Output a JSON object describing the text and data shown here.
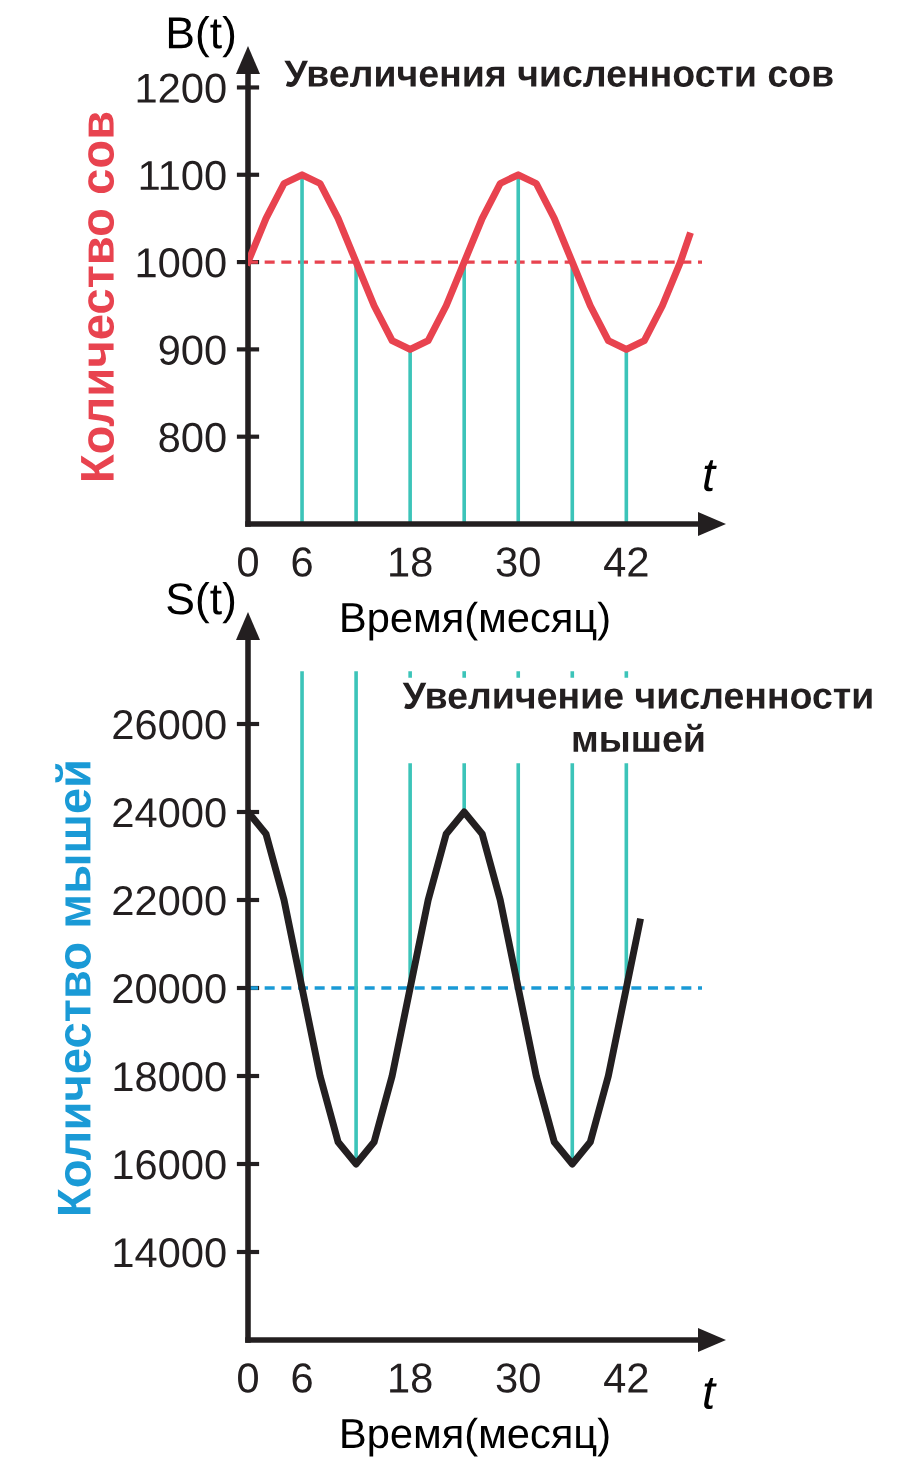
{
  "chart_data": [
    {
      "type": "line",
      "title": "Увеличения численности сов",
      "xlabel": "Время(месяц)",
      "ylabel": "Количество сов",
      "annotations": [
        "B(t)",
        "t"
      ],
      "x": [
        0,
        2,
        4,
        6,
        8,
        10,
        12,
        14,
        16,
        18,
        20,
        22,
        24,
        26,
        28,
        30,
        32,
        34,
        36,
        38,
        40,
        42,
        44,
        46,
        48,
        49
      ],
      "series": [
        {
          "color": "#e8434f",
          "values": [
            1000,
            1050,
            1090,
            1100,
            1090,
            1050,
            1000,
            950,
            910,
            900,
            910,
            950,
            1000,
            1050,
            1090,
            1100,
            1090,
            1050,
            1000,
            950,
            910,
            900,
            910,
            950,
            1000,
            1030
          ]
        }
      ],
      "xlim": [
        0,
        50.4
      ],
      "ylim": [
        700,
        1220
      ],
      "xticks": [
        0,
        6,
        18,
        30,
        42
      ],
      "yticks": [
        800,
        900,
        1000,
        1100,
        1200
      ],
      "grid": false,
      "marker": "none",
      "line_style": "solid",
      "ref_lines": [
        {
          "axis": "y",
          "value": 1000,
          "color": "#e8434f",
          "line_style": "dashed"
        },
        {
          "axis": "x",
          "value": 6,
          "color": "#3cc4b9"
        },
        {
          "axis": "x",
          "value": 12,
          "color": "#3cc4b9"
        },
        {
          "axis": "x",
          "value": 18,
          "color": "#3cc4b9"
        },
        {
          "axis": "x",
          "value": 24,
          "color": "#3cc4b9"
        },
        {
          "axis": "x",
          "value": 30,
          "color": "#3cc4b9"
        },
        {
          "axis": "x",
          "value": 36,
          "color": "#3cc4b9"
        },
        {
          "axis": "x",
          "value": 42,
          "color": "#3cc4b9"
        }
      ]
    },
    {
      "type": "line",
      "title": "Увеличение численности мышей",
      "xlabel": "Время(месяц)",
      "ylabel": "Количество мышей",
      "annotations": [
        "S(t)",
        "t"
      ],
      "x": [
        0,
        2,
        4,
        6,
        8,
        10,
        12,
        14,
        16,
        18,
        20,
        22,
        24,
        26,
        28,
        30,
        32,
        34,
        36,
        38,
        40,
        42,
        43.5
      ],
      "series": [
        {
          "color": "#231f20",
          "values": [
            24000,
            23500,
            22000,
            20000,
            18000,
            16500,
            16000,
            16500,
            18000,
            20000,
            22000,
            23500,
            24000,
            23500,
            22000,
            20000,
            18000,
            16500,
            16000,
            16500,
            18000,
            20000,
            21500
          ]
        }
      ],
      "xlim": [
        0,
        50.4
      ],
      "ylim": [
        12000,
        28000
      ],
      "xticks": [
        0,
        6,
        18,
        30,
        42
      ],
      "yticks": [
        14000,
        16000,
        18000,
        20000,
        22000,
        24000,
        26000
      ],
      "grid": false,
      "marker": "none",
      "line_style": "solid",
      "ref_lines": [
        {
          "axis": "y",
          "value": 20000,
          "color": "#1a9ad6",
          "line_style": "dashed"
        },
        {
          "axis": "x",
          "value": 6,
          "color": "#3cc4b9"
        },
        {
          "axis": "x",
          "value": 12,
          "color": "#3cc4b9"
        },
        {
          "axis": "x",
          "value": 18,
          "color": "#3cc4b9"
        },
        {
          "axis": "x",
          "value": 24,
          "color": "#3cc4b9"
        },
        {
          "axis": "x",
          "value": 30,
          "color": "#3cc4b9"
        },
        {
          "axis": "x",
          "value": 36,
          "color": "#3cc4b9"
        },
        {
          "axis": "x",
          "value": 42,
          "color": "#3cc4b9"
        }
      ]
    }
  ]
}
